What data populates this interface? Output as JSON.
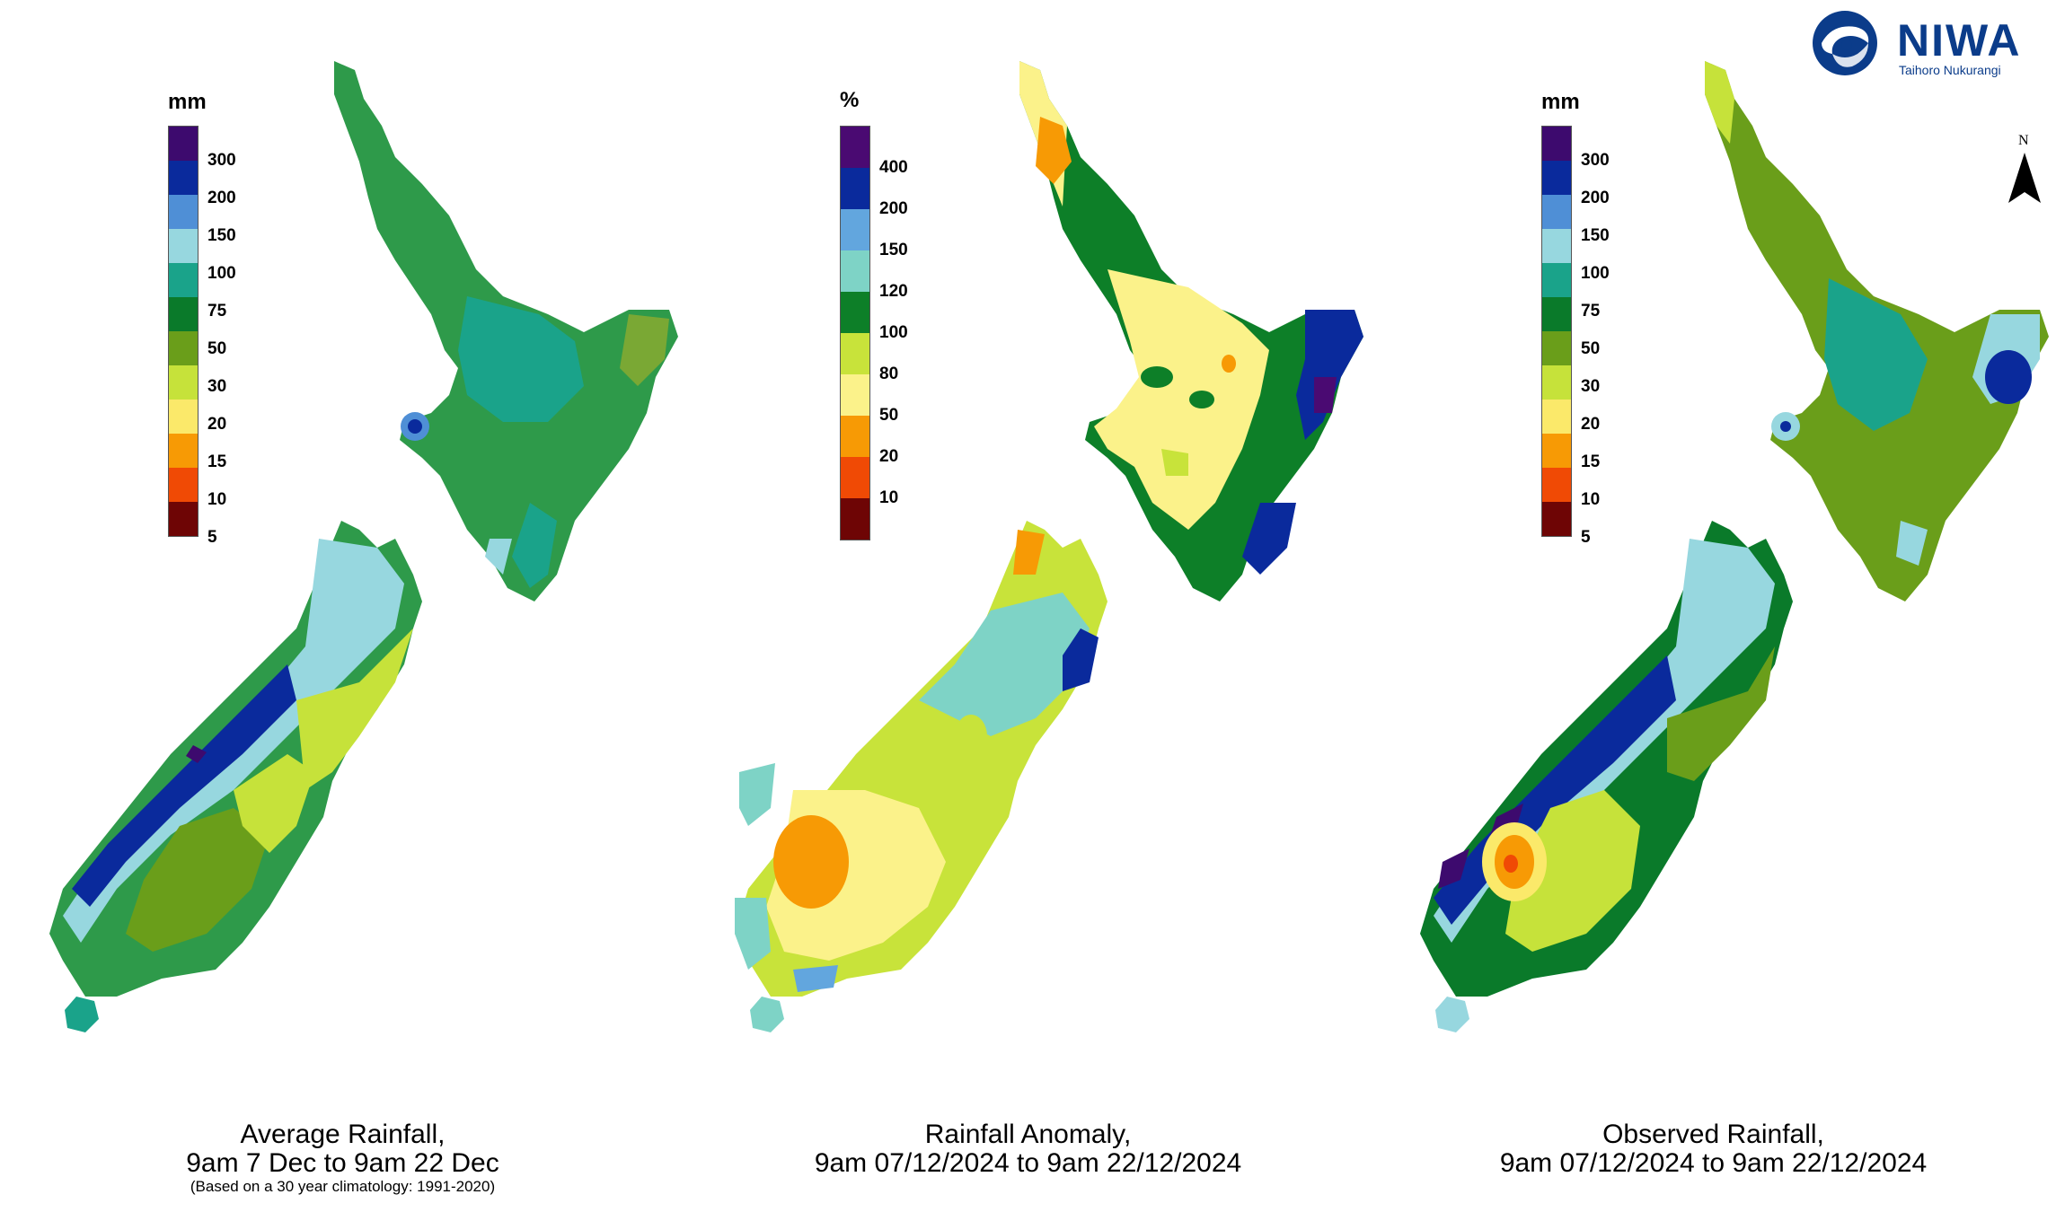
{
  "logo": {
    "name": "NIWA",
    "subtitle": "Taihoro Nukurangi",
    "icon": "niwa-swirl-icon"
  },
  "north_arrow": {
    "label": "N",
    "icon": "north-arrow-icon"
  },
  "panels": [
    {
      "id": "average",
      "legend_unit": "mm",
      "legend_ticks": [
        "300",
        "200",
        "150",
        "100",
        "75",
        "50",
        "30",
        "20",
        "15",
        "10",
        "5"
      ],
      "legend_colors": [
        "#3d0a6e",
        "#0a2a9c",
        "#4f8fd6",
        "#97d7df",
        "#1aa38a",
        "#0a7a2a",
        "#6a9e1a",
        "#c6e23a",
        "#fbe96a",
        "#f79a05",
        "#f04a05",
        "#6e0505"
      ],
      "caption_line1": "Average Rainfall,",
      "caption_line2": "9am 7 Dec to 9am 22 Dec",
      "caption_line3": "(Based on a 30 year climatology: 1991-2020)"
    },
    {
      "id": "anomaly",
      "legend_unit": "%",
      "legend_ticks": [
        "400",
        "200",
        "150",
        "120",
        "100",
        "80",
        "50",
        "20",
        "10"
      ],
      "legend_colors": [
        "#4a0a72",
        "#0a2a9c",
        "#62a6de",
        "#7ed3c6",
        "#0d7f28",
        "#c8e33a",
        "#fbf28a",
        "#f79a05",
        "#f04a05",
        "#6e0505"
      ],
      "caption_line1": "Rainfall Anomaly,",
      "caption_line2": "9am 07/12/2024 to 9am 22/12/2024",
      "caption_line3": ""
    },
    {
      "id": "observed",
      "legend_unit": "mm",
      "legend_ticks": [
        "300",
        "200",
        "150",
        "100",
        "75",
        "50",
        "30",
        "20",
        "15",
        "10",
        "5"
      ],
      "legend_colors": [
        "#3d0a6e",
        "#0a2a9c",
        "#4f8fd6",
        "#97d7df",
        "#1aa38a",
        "#0a7a2a",
        "#6a9e1a",
        "#c6e23a",
        "#fbe96a",
        "#f79a05",
        "#f04a05",
        "#6e0505"
      ],
      "caption_line1": "Observed Rainfall,",
      "caption_line2": "9am 07/12/2024 to 9am 22/12/2024",
      "caption_line3": ""
    }
  ]
}
